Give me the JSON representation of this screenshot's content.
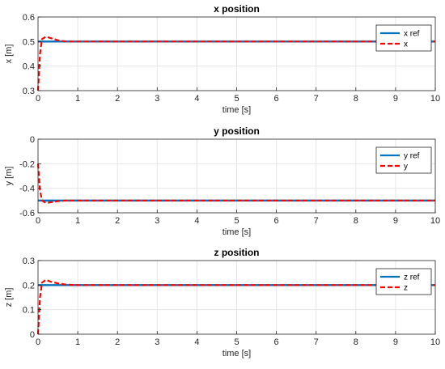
{
  "chart_data": [
    {
      "type": "line",
      "title": "x position",
      "xlabel": "time [s]",
      "ylabel": "x [m]",
      "xlim": [
        0,
        10
      ],
      "ylim": [
        0.3,
        0.6
      ],
      "xticks": [
        "0",
        "1",
        "2",
        "3",
        "4",
        "5",
        "6",
        "7",
        "8",
        "9",
        "10"
      ],
      "yticks": [
        "0.3",
        "0.4",
        "0.5",
        "0.6"
      ],
      "grid": true,
      "legend": "top-right",
      "series": [
        {
          "name": "x ref",
          "color": "#0072BD",
          "style": "solid",
          "x": [
            0,
            10
          ],
          "y": [
            0.5,
            0.5
          ]
        },
        {
          "name": "x",
          "color": "#FF0000",
          "style": "dashed",
          "x": [
            0,
            0.05,
            0.1,
            0.2,
            0.3,
            0.5,
            0.7,
            1.0,
            10
          ],
          "y": [
            0.3,
            0.45,
            0.51,
            0.52,
            0.515,
            0.505,
            0.5,
            0.5,
            0.5
          ]
        }
      ]
    },
    {
      "type": "line",
      "title": "y position",
      "xlabel": "time [s]",
      "ylabel": "y [m]",
      "xlim": [
        0,
        10
      ],
      "ylim": [
        -0.6,
        0
      ],
      "xticks": [
        "0",
        "1",
        "2",
        "3",
        "4",
        "5",
        "6",
        "7",
        "8",
        "9",
        "10"
      ],
      "yticks": [
        "-0.6",
        "-0.4",
        "-0.2",
        "0"
      ],
      "grid": true,
      "legend": "top-right",
      "series": [
        {
          "name": "y ref",
          "color": "#0072BD",
          "style": "solid",
          "x": [
            0,
            10
          ],
          "y": [
            -0.5,
            -0.5
          ]
        },
        {
          "name": "y",
          "color": "#FF0000",
          "style": "dashed",
          "x": [
            0,
            0.05,
            0.1,
            0.2,
            0.3,
            0.5,
            0.7,
            1.0,
            10
          ],
          "y": [
            -0.2,
            -0.42,
            -0.5,
            -0.52,
            -0.515,
            -0.505,
            -0.5,
            -0.5,
            -0.5
          ]
        }
      ]
    },
    {
      "type": "line",
      "title": "z position",
      "xlabel": "time [s]",
      "ylabel": "z [m]",
      "xlim": [
        0,
        10
      ],
      "ylim": [
        0,
        0.3
      ],
      "xticks": [
        "0",
        "1",
        "2",
        "3",
        "4",
        "5",
        "6",
        "7",
        "8",
        "9",
        "10"
      ],
      "yticks": [
        "0",
        "0.1",
        "0.2",
        "0.3"
      ],
      "grid": true,
      "legend": "top-right",
      "series": [
        {
          "name": "z ref",
          "color": "#0072BD",
          "style": "solid",
          "x": [
            0,
            10
          ],
          "y": [
            0.2,
            0.2
          ]
        },
        {
          "name": "z",
          "color": "#FF0000",
          "style": "dashed",
          "x": [
            0,
            0.05,
            0.1,
            0.2,
            0.3,
            0.5,
            0.7,
            1.0,
            10
          ],
          "y": [
            0,
            0.15,
            0.21,
            0.222,
            0.215,
            0.207,
            0.202,
            0.2,
            0.2
          ]
        }
      ]
    }
  ]
}
